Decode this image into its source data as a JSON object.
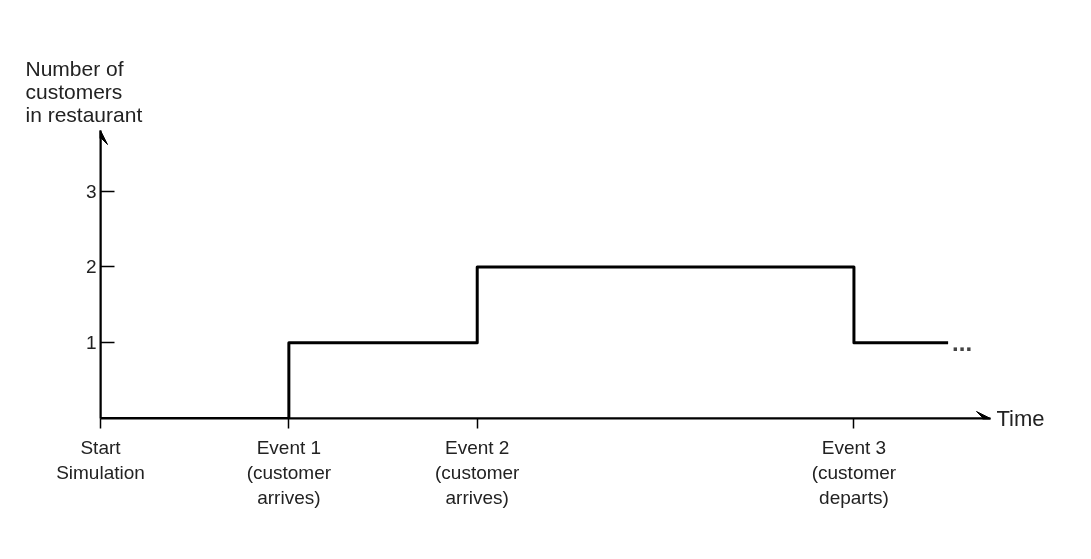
{
  "chart_data": {
    "type": "step",
    "xlabel": "Time",
    "ylabel": "Number of\ncustomers\nin restaurant",
    "categories": [
      "Start\nSimulation",
      null,
      "Event 1\n(customer\narrives)",
      null,
      "Event 2\n(customer\narrives)",
      null,
      null,
      null,
      "Event 3\n(customer\ndeparts)",
      null
    ],
    "values": [
      0,
      0,
      1,
      1,
      2,
      2,
      2,
      2,
      1,
      1
    ],
    "color": "#000000",
    "ylim": [
      0,
      3.8
    ],
    "yticks": [
      1,
      2,
      3
    ],
    "grid": false,
    "annotations": [
      "..."
    ]
  }
}
